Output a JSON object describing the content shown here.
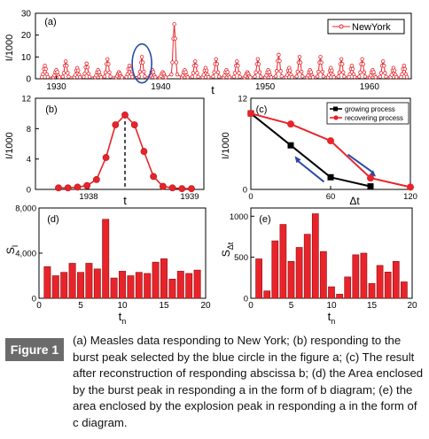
{
  "caption": {
    "label": "Figure 1",
    "text": "(a) Measles data responding to New York; (b) responding to the burst peak selected by the blue circle in the figure a; (c) The result after reconstruction of responding abscissa b; (d) the Area enclosed by the burst peak in responding a in the form of b diagram; (e) the area enclosed by the explosion peak in responding a in the form of c diagram."
  },
  "colors": {
    "red": "#e8242a",
    "blue": "#2a4aa8",
    "black": "#000000"
  },
  "chart_data": [
    {
      "panel": "(a)",
      "type": "line",
      "ylabel": "I/1000",
      "xlabel": "t",
      "xlim": [
        1928,
        1964
      ],
      "ylim": [
        0,
        30
      ],
      "x_ticks": [
        1930,
        1940,
        1950,
        1960
      ],
      "y_ticks": [
        0,
        10,
        20,
        30
      ],
      "legend": {
        "label": "NewYork",
        "position": "top-right"
      },
      "annotation": "blue circle around 1938 peak",
      "series": [
        {
          "name": "NewYork",
          "peaks": [
            {
              "t": 1928.9,
              "v": 6
            },
            {
              "t": 1930.0,
              "v": 4
            },
            {
              "t": 1930.9,
              "v": 8
            },
            {
              "t": 1932.0,
              "v": 5
            },
            {
              "t": 1932.9,
              "v": 7
            },
            {
              "t": 1934.0,
              "v": 4
            },
            {
              "t": 1934.9,
              "v": 9
            },
            {
              "t": 1936.0,
              "v": 3
            },
            {
              "t": 1937.0,
              "v": 6
            },
            {
              "t": 1938.2,
              "v": 10
            },
            {
              "t": 1939.2,
              "v": 4
            },
            {
              "t": 1940.2,
              "v": 3
            },
            {
              "t": 1941.3,
              "v": 25
            },
            {
              "t": 1942.3,
              "v": 4
            },
            {
              "t": 1943.3,
              "v": 8
            },
            {
              "t": 1944.3,
              "v": 5
            },
            {
              "t": 1945.3,
              "v": 9
            },
            {
              "t": 1946.3,
              "v": 4
            },
            {
              "t": 1947.3,
              "v": 8
            },
            {
              "t": 1948.3,
              "v": 3
            },
            {
              "t": 1949.3,
              "v": 9
            },
            {
              "t": 1950.3,
              "v": 4
            },
            {
              "t": 1951.3,
              "v": 11
            },
            {
              "t": 1952.3,
              "v": 5
            },
            {
              "t": 1953.3,
              "v": 10
            },
            {
              "t": 1954.3,
              "v": 4
            },
            {
              "t": 1955.3,
              "v": 10
            },
            {
              "t": 1956.3,
              "v": 5
            },
            {
              "t": 1957.3,
              "v": 9
            },
            {
              "t": 1958.3,
              "v": 6
            },
            {
              "t": 1959.3,
              "v": 9
            },
            {
              "t": 1960.3,
              "v": 4
            },
            {
              "t": 1961.3,
              "v": 8
            },
            {
              "t": 1962.3,
              "v": 5
            },
            {
              "t": 1963.3,
              "v": 6
            }
          ]
        }
      ]
    },
    {
      "panel": "(b)",
      "type": "line",
      "ylabel": "I/1000",
      "xlabel": "t",
      "x_tick_labels": [
        "1938",
        "1939"
      ],
      "ylim": [
        0,
        12
      ],
      "y_ticks": [
        0,
        4,
        8,
        12
      ],
      "annotation": "dashed line at peak",
      "series": [
        {
          "name": "peak",
          "values": [
            0.2,
            0.2,
            0.3,
            0.5,
            1.3,
            4.2,
            8.5,
            9.8,
            8.5,
            5.0,
            1.7,
            0.4,
            0.2,
            0.1,
            0.1
          ]
        }
      ]
    },
    {
      "panel": "(c)",
      "type": "line",
      "ylabel": "I/1000",
      "xlabel": "Δt",
      "xlim": [
        0,
        120
      ],
      "ylim": [
        0,
        12
      ],
      "x_ticks": [
        0,
        60,
        120
      ],
      "y_ticks": [
        0,
        12
      ],
      "legend": {
        "position": "top-right"
      },
      "series": [
        {
          "name": "growing process",
          "color": "#000000",
          "x": [
            0,
            30,
            60,
            90
          ],
          "y": [
            10,
            5.8,
            1.6,
            0.4
          ]
        },
        {
          "name": "recovering process",
          "color": "#e8242a",
          "x": [
            0,
            30,
            60,
            90,
            120
          ],
          "y": [
            10,
            8.6,
            6.4,
            1.5,
            0.3
          ]
        }
      ]
    },
    {
      "panel": "(d)",
      "type": "bar",
      "ylabel": "S_I",
      "xlabel": "t_n",
      "xlim": [
        0,
        20
      ],
      "ylim": [
        0,
        8000
      ],
      "x_ticks": [
        0,
        5,
        10,
        15,
        20
      ],
      "y_ticks": [
        0,
        4000,
        8000
      ],
      "y_tick_labels": [
        "0",
        "4,000",
        "8,000"
      ],
      "categories": [
        1,
        2,
        3,
        4,
        5,
        6,
        7,
        8,
        9,
        10,
        11,
        12,
        13,
        14,
        15,
        16,
        17,
        18,
        19
      ],
      "values": [
        2800,
        2000,
        2300,
        3100,
        2300,
        3100,
        2600,
        7000,
        1800,
        2400,
        2000,
        2300,
        2200,
        3200,
        3500,
        1700,
        2400,
        2200,
        2500
      ]
    },
    {
      "panel": "(e)",
      "type": "bar",
      "ylabel": "S_Δt",
      "xlabel": "t_n",
      "xlim": [
        0,
        20
      ],
      "ylim": [
        0,
        1100
      ],
      "x_ticks": [
        0,
        5,
        10,
        15,
        20
      ],
      "y_ticks": [
        0,
        500,
        1000
      ],
      "categories": [
        1,
        2,
        3,
        4,
        5,
        6,
        7,
        8,
        9,
        10,
        11,
        12,
        13,
        14,
        15,
        16,
        17,
        18,
        19
      ],
      "values": [
        480,
        90,
        700,
        900,
        450,
        620,
        780,
        1030,
        570,
        140,
        50,
        260,
        530,
        550,
        180,
        400,
        320,
        450,
        200
      ]
    }
  ]
}
